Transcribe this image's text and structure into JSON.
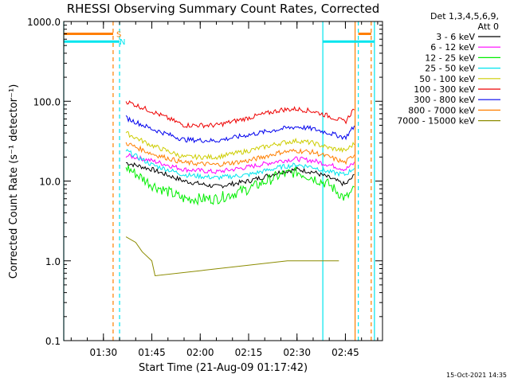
{
  "title": "RHESSI Observing Summary Count Rates, Corrected",
  "footer_timestamp": "15-Oct-2021 14:35",
  "legend": {
    "header": [
      "Det 1,3,4,5,6,9,",
      "Att 0"
    ]
  },
  "flags": [
    {
      "label": "S",
      "color": "#ff7f00"
    },
    {
      "label": "N",
      "color": "#00e5ee"
    }
  ],
  "chart_data": {
    "type": "line",
    "title": "RHESSI Observing Summary Count Rates, Corrected",
    "xlabel": "Start Time (21-Aug-09 01:17:42)",
    "ylabel": "Corrected Count Rate (s⁻¹ detector⁻¹)",
    "yscale": "log",
    "xlim": [
      "01:17:42",
      "02:56:30"
    ],
    "ylim": [
      0.1,
      1000.0
    ],
    "x_ticks": [
      "01:30",
      "01:45",
      "02:00",
      "02:15",
      "02:30",
      "02:45"
    ],
    "y_ticks": [
      "0.1",
      "1.0",
      "10.0",
      "100.0",
      "1000.0"
    ],
    "x_time_unit": "HH:MM",
    "series": [
      {
        "name": "3 - 6 keV",
        "color": "#000000",
        "x": [
          "01:37",
          "01:45",
          "01:55",
          "02:05",
          "02:15",
          "02:25",
          "02:30",
          "02:35",
          "02:40",
          "02:45",
          "02:48"
        ],
        "y": [
          17,
          14,
          10,
          8.5,
          10,
          13,
          14,
          13,
          11,
          9,
          12
        ]
      },
      {
        "name": "6 - 12 keV",
        "color": "#ff00ff",
        "x": [
          "01:37",
          "01:45",
          "01:55",
          "02:05",
          "02:15",
          "02:25",
          "02:30",
          "02:35",
          "02:40",
          "02:45",
          "02:48"
        ],
        "y": [
          21,
          18,
          14,
          13,
          15,
          18,
          19,
          18,
          16,
          14,
          17
        ]
      },
      {
        "name": "12 - 25 keV",
        "color": "#00ee00",
        "x": [
          "01:37",
          "01:45",
          "01:55",
          "02:05",
          "02:15",
          "02:25",
          "02:30",
          "02:35",
          "02:40",
          "02:45",
          "02:48"
        ],
        "y": [
          15,
          9,
          6,
          6,
          8,
          12,
          13,
          11,
          9,
          6,
          8
        ]
      },
      {
        "name": "25 - 50 keV",
        "color": "#00e5ee",
        "x": [
          "01:37",
          "01:45",
          "01:55",
          "02:05",
          "02:15",
          "02:25",
          "02:30",
          "02:35",
          "02:40",
          "02:45",
          "02:48"
        ],
        "y": [
          24,
          16,
          12,
          11,
          12,
          15,
          16,
          15,
          13,
          12,
          15
        ]
      },
      {
        "name": "50 - 100 keV",
        "color": "#cdcd00",
        "x": [
          "01:37",
          "01:45",
          "01:55",
          "02:05",
          "02:15",
          "02:25",
          "02:30",
          "02:35",
          "02:40",
          "02:45",
          "02:48"
        ],
        "y": [
          40,
          28,
          20,
          20,
          24,
          30,
          32,
          30,
          26,
          24,
          30
        ]
      },
      {
        "name": "100 - 300 keV",
        "color": "#ee0000",
        "x": [
          "01:37",
          "01:45",
          "01:55",
          "02:05",
          "02:15",
          "02:25",
          "02:30",
          "02:35",
          "02:40",
          "02:45",
          "02:48"
        ],
        "y": [
          100,
          75,
          50,
          50,
          62,
          78,
          80,
          75,
          65,
          55,
          85
        ]
      },
      {
        "name": "300 - 800 keV",
        "color": "#0000ee",
        "x": [
          "01:37",
          "01:45",
          "01:55",
          "02:05",
          "02:15",
          "02:25",
          "02:30",
          "02:35",
          "02:40",
          "02:45",
          "02:48"
        ],
        "y": [
          62,
          45,
          33,
          32,
          38,
          45,
          48,
          45,
          40,
          35,
          50
        ]
      },
      {
        "name": "800 - 7000 keV",
        "color": "#ff7f00",
        "x": [
          "01:37",
          "01:45",
          "01:55",
          "02:05",
          "02:15",
          "02:25",
          "02:30",
          "02:35",
          "02:40",
          "02:45",
          "02:48"
        ],
        "y": [
          30,
          22,
          17,
          16,
          18,
          23,
          24,
          23,
          20,
          17,
          22
        ]
      },
      {
        "name": "7000 - 15000 keV",
        "color": "#8b8b00",
        "x": [
          "01:37",
          "01:40",
          "01:42",
          "01:45",
          "01:46",
          "02:27",
          "02:32",
          "02:37",
          "02:43"
        ],
        "y": [
          2.0,
          1.7,
          1.3,
          1.0,
          0.65,
          1.0,
          1.0,
          1.0,
          1.0
        ]
      }
    ],
    "vertical_lines": [
      {
        "x": "01:17:42",
        "color": "#00e5ee",
        "style": "solid"
      },
      {
        "x": "01:33",
        "color": "#ff7f00",
        "style": "dashed"
      },
      {
        "x": "01:35",
        "color": "#00e5ee",
        "style": "dashed"
      },
      {
        "x": "02:38",
        "color": "#00e5ee",
        "style": "solid"
      },
      {
        "x": "02:48",
        "color": "#ff7f00",
        "style": "solid"
      },
      {
        "x": "02:49",
        "color": "#00e5ee",
        "style": "dashed"
      },
      {
        "x": "02:53",
        "color": "#ff7f00",
        "style": "dashed"
      },
      {
        "x": "02:54",
        "color": "#00e5ee",
        "style": "solid"
      }
    ],
    "status_bars": [
      {
        "label": "S",
        "color": "#ff7f00",
        "y": 700,
        "ranges": [
          [
            "01:17:42",
            "01:33"
          ],
          [
            "02:49",
            "02:53"
          ]
        ]
      },
      {
        "label": "N",
        "color": "#00e5ee",
        "y": 560,
        "ranges": [
          [
            "01:17:42",
            "01:35"
          ],
          [
            "02:38",
            "02:54"
          ]
        ]
      }
    ],
    "grid": false,
    "legend_position": "right"
  }
}
